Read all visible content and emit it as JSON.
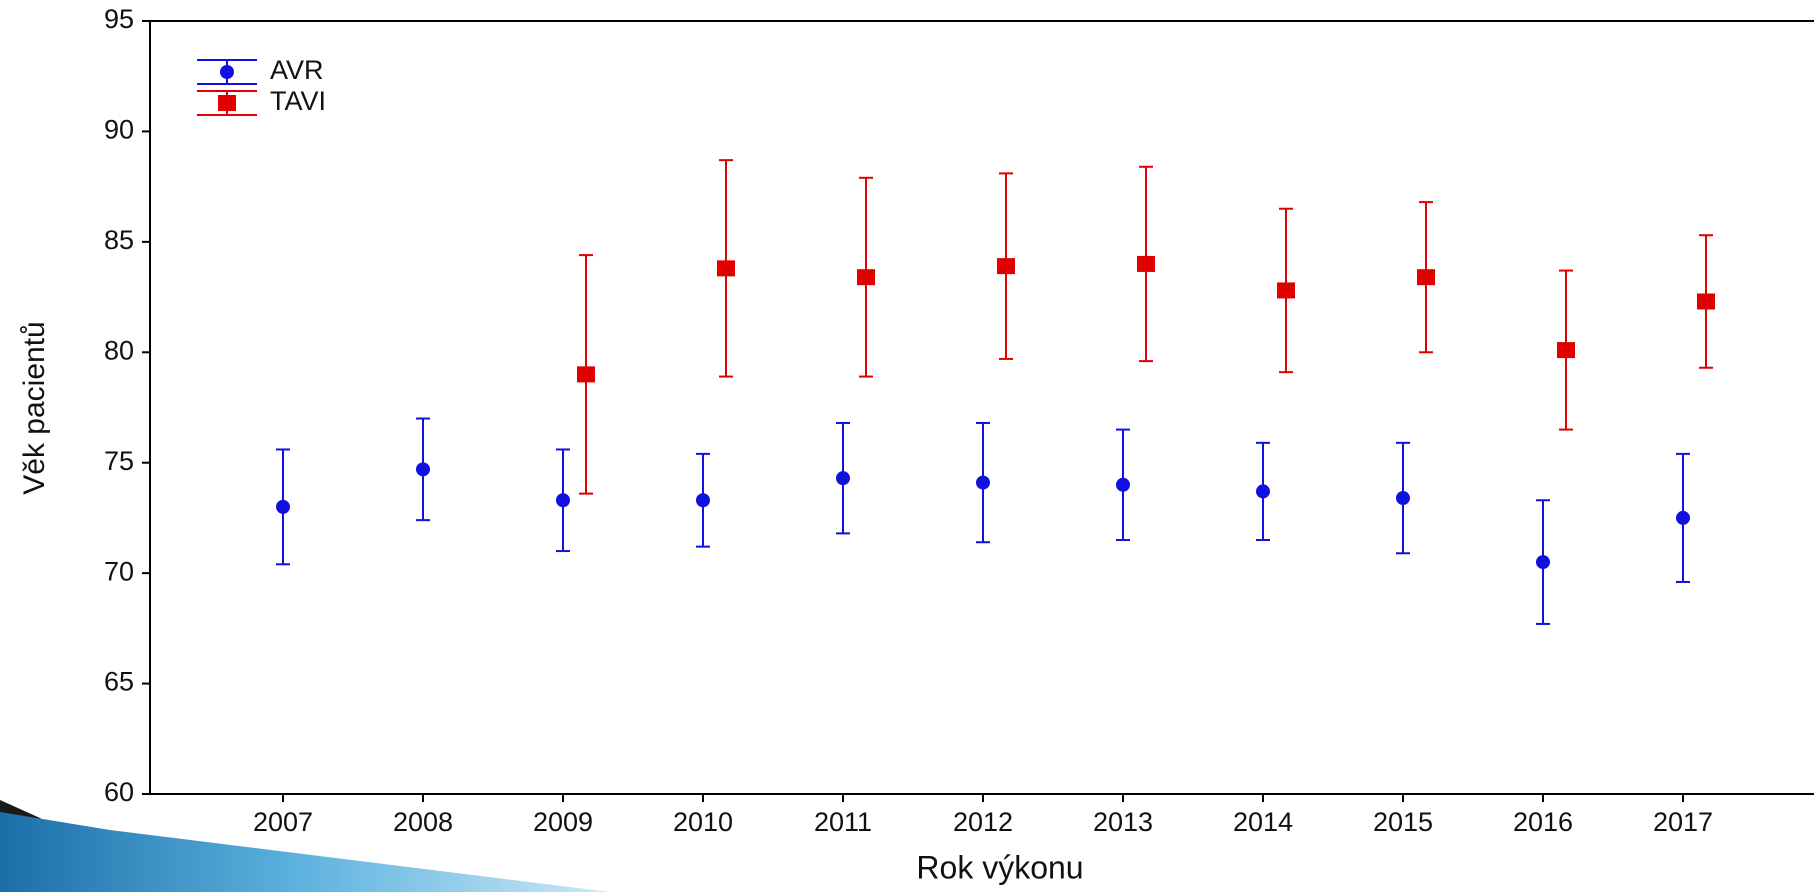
{
  "chart_data": {
    "type": "errorbar",
    "x_label": "Rok výkonu",
    "y_label": "Věk pacientů",
    "categories": [
      "2007",
      "2008",
      "2009",
      "2010",
      "2011",
      "2012",
      "2013",
      "2014",
      "2015",
      "2016",
      "2017"
    ],
    "series": [
      {
        "name": "AVR",
        "color": "#1010e0",
        "marker": "circle",
        "values": [
          73.0,
          74.7,
          73.3,
          73.3,
          74.3,
          74.1,
          74.0,
          73.7,
          73.4,
          70.5,
          72.5
        ],
        "errors": [
          2.6,
          2.3,
          2.3,
          2.1,
          2.5,
          2.7,
          2.5,
          2.2,
          2.5,
          2.8,
          2.9
        ]
      },
      {
        "name": "TAVI",
        "color": "#e00000",
        "marker": "square",
        "values": [
          null,
          null,
          79.0,
          83.8,
          83.4,
          83.9,
          84.0,
          82.8,
          83.4,
          80.1,
          82.3
        ],
        "errors": [
          null,
          null,
          5.4,
          4.9,
          4.5,
          4.2,
          4.4,
          3.7,
          3.4,
          3.6,
          3.0
        ]
      }
    ],
    "ylim": [
      60,
      95
    ],
    "yticks": [
      60,
      65,
      70,
      75,
      80,
      85,
      90,
      95
    ]
  }
}
